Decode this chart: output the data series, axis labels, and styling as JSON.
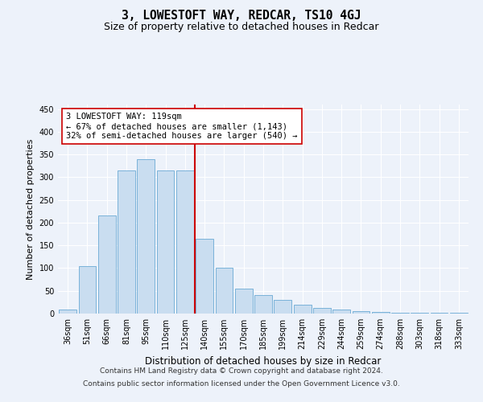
{
  "title1": "3, LOWESTOFT WAY, REDCAR, TS10 4GJ",
  "title2": "Size of property relative to detached houses in Redcar",
  "xlabel": "Distribution of detached houses by size in Redcar",
  "ylabel": "Number of detached properties",
  "categories": [
    "36sqm",
    "51sqm",
    "66sqm",
    "81sqm",
    "95sqm",
    "110sqm",
    "125sqm",
    "140sqm",
    "155sqm",
    "170sqm",
    "185sqm",
    "199sqm",
    "214sqm",
    "229sqm",
    "244sqm",
    "259sqm",
    "274sqm",
    "288sqm",
    "303sqm",
    "318sqm",
    "333sqm"
  ],
  "values": [
    8,
    105,
    215,
    315,
    340,
    315,
    315,
    165,
    100,
    55,
    40,
    30,
    20,
    12,
    8,
    5,
    3,
    2,
    2,
    2,
    2
  ],
  "bar_color": "#c9ddf0",
  "bar_edge_color": "#6aaad4",
  "vline_x_index": 6.5,
  "vline_color": "#cc0000",
  "annotation_text": "3 LOWESTOFT WAY: 119sqm\n← 67% of detached houses are smaller (1,143)\n32% of semi-detached houses are larger (540) →",
  "annotation_box_facecolor": "#ffffff",
  "annotation_box_edgecolor": "#cc0000",
  "ylim": [
    0,
    460
  ],
  "yticks": [
    0,
    50,
    100,
    150,
    200,
    250,
    300,
    350,
    400,
    450
  ],
  "background_color": "#edf2fa",
  "footer_line1": "Contains HM Land Registry data © Crown copyright and database right 2024.",
  "footer_line2": "Contains public sector information licensed under the Open Government Licence v3.0.",
  "title1_fontsize": 10.5,
  "title2_fontsize": 9,
  "xlabel_fontsize": 8.5,
  "ylabel_fontsize": 8,
  "tick_fontsize": 7,
  "annotation_fontsize": 7.5,
  "footer_fontsize": 6.5
}
